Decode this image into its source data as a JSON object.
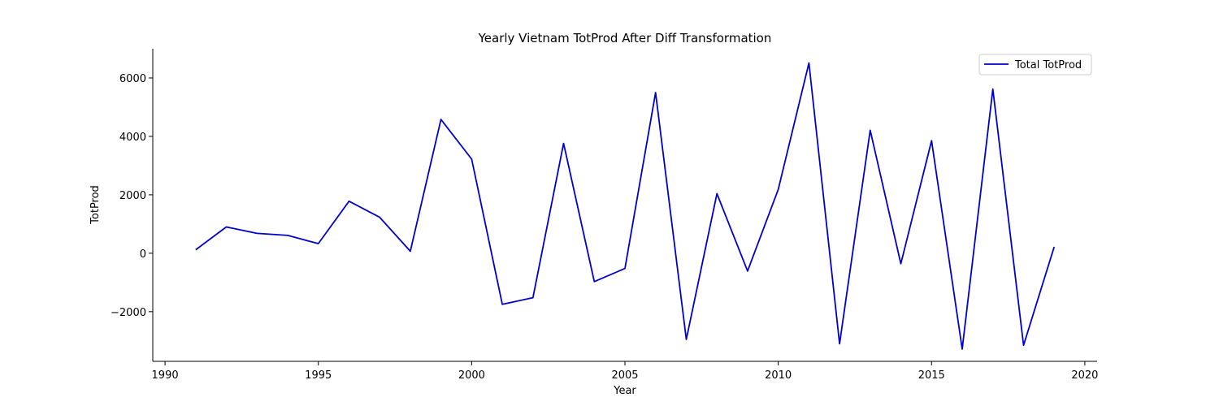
{
  "chart_data": {
    "type": "line",
    "title": "Yearly Vietnam TotProd After Diff Transformation",
    "xlabel": "Year",
    "ylabel": "TotProd",
    "xlim": [
      1989.6,
      2020.4
    ],
    "ylim": [
      -3700,
      7000
    ],
    "xticks": [
      1990,
      1995,
      2000,
      2005,
      2010,
      2015,
      2020
    ],
    "yticks": [
      -2000,
      0,
      2000,
      4000,
      6000
    ],
    "ytick_labels": [
      "−2000",
      "0",
      "2000",
      "4000",
      "6000"
    ],
    "grid": false,
    "legend_position": "top-right",
    "series": [
      {
        "name": "Total TotProd",
        "color": "#0000cc",
        "x": [
          1991,
          1992,
          1993,
          1994,
          1995,
          1996,
          1997,
          1998,
          1999,
          2000,
          2001,
          2002,
          2003,
          2004,
          2005,
          2006,
          2007,
          2008,
          2009,
          2010,
          2011,
          2012,
          2013,
          2014,
          2015,
          2016,
          2017,
          2018,
          2019
        ],
        "y": [
          120,
          900,
          680,
          610,
          330,
          1780,
          1230,
          70,
          4580,
          3220,
          -1750,
          -1520,
          3760,
          -970,
          -520,
          5500,
          -2950,
          2040,
          -610,
          2180,
          6510,
          -3100,
          4210,
          -360,
          3850,
          -3280,
          5620,
          -3150,
          220
        ]
      }
    ]
  }
}
